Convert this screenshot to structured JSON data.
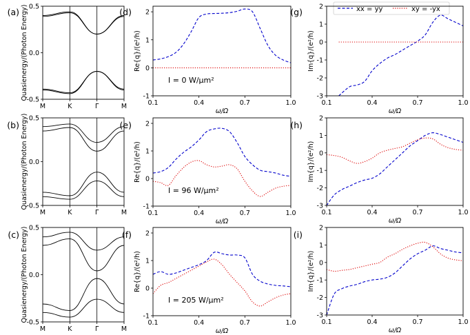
{
  "figure": {
    "legend": [
      {
        "label": "xx = yy",
        "color": "#0000cc",
        "dash": "dashed"
      },
      {
        "label": "xy = -yx",
        "color": "#dd0000",
        "dash": "dotted"
      }
    ]
  },
  "chart_data": [
    {
      "panel": "(a)",
      "type": "line",
      "ylabel": "Quasienergy/(Photon Energy)",
      "ylim": [
        -0.5,
        0.5
      ],
      "yticks": [
        "0.5",
        "0.0",
        "-0.5"
      ],
      "xticks": [
        "M",
        "K",
        "Γ",
        "M"
      ],
      "xpath": [
        0,
        1,
        2,
        3
      ],
      "series": [
        {
          "name": "band1",
          "values": [
            0.4,
            0.44,
            0.2,
            0.4
          ]
        },
        {
          "name": "band2",
          "values": [
            0.39,
            0.43,
            0.2,
            0.39
          ]
        },
        {
          "name": "band3",
          "values": [
            -0.39,
            -0.43,
            -0.2,
            -0.39
          ]
        },
        {
          "name": "band4",
          "values": [
            -0.4,
            -0.44,
            -0.2,
            -0.4
          ]
        }
      ]
    },
    {
      "panel": "(b)",
      "type": "line",
      "ylabel": "Quasienergy/(Photon Energy)",
      "ylim": [
        -0.5,
        0.5
      ],
      "yticks": [
        "0.5",
        "0.0",
        "-0.5"
      ],
      "xticks": [
        "M",
        "K",
        "Γ",
        "M"
      ],
      "xpath": [
        0,
        1,
        2,
        3
      ],
      "series": [
        {
          "name": "band1",
          "values": [
            0.4,
            0.43,
            0.22,
            0.4
          ]
        },
        {
          "name": "band2",
          "values": [
            0.35,
            0.39,
            0.12,
            0.35
          ]
        },
        {
          "name": "band3",
          "values": [
            -0.35,
            -0.39,
            -0.12,
            -0.35
          ]
        },
        {
          "name": "band4",
          "values": [
            -0.4,
            -0.43,
            -0.22,
            -0.4
          ]
        }
      ]
    },
    {
      "panel": "(c)",
      "type": "line",
      "ylabel": "Quasienergy/(Photon Energy)",
      "ylim": [
        -0.5,
        0.5
      ],
      "yticks": [
        "0.5",
        "0.0",
        "-0.5"
      ],
      "xticks": [
        "M",
        "K",
        "Γ",
        "M"
      ],
      "xpath": [
        0,
        1,
        2,
        3
      ],
      "series": [
        {
          "name": "band1",
          "values": [
            0.4,
            0.45,
            0.26,
            0.4
          ]
        },
        {
          "name": "band2",
          "values": [
            0.31,
            0.38,
            0.04,
            0.31
          ]
        },
        {
          "name": "band3",
          "values": [
            -0.31,
            -0.38,
            -0.04,
            -0.31
          ]
        },
        {
          "name": "band4",
          "values": [
            -0.4,
            -0.45,
            -0.26,
            -0.4
          ]
        }
      ]
    },
    {
      "panel": "(d)",
      "type": "line",
      "xlabel": "ω/Ω",
      "ylabel": "Re{q}/(e²/h)",
      "xlim": [
        0.1,
        1.0
      ],
      "ylim": [
        -1,
        2.2
      ],
      "xticks": [
        "0.1",
        "0.4",
        "0.7",
        "1.0"
      ],
      "yticks": [
        "-1",
        "0",
        "1",
        "2"
      ],
      "annotation": "I = 0 W/μm²",
      "x": [
        0.1,
        0.15,
        0.2,
        0.25,
        0.3,
        0.35,
        0.4,
        0.45,
        0.5,
        0.55,
        0.6,
        0.65,
        0.7,
        0.75,
        0.8,
        0.85,
        0.9,
        0.95,
        1.0
      ],
      "series": [
        {
          "name": "xx = yy",
          "values": [
            0.28,
            0.32,
            0.4,
            0.55,
            0.85,
            1.3,
            1.8,
            1.92,
            1.94,
            1.95,
            1.97,
            2.02,
            2.1,
            2.0,
            1.4,
            0.8,
            0.45,
            0.28,
            0.18
          ]
        },
        {
          "name": "xy = -yx",
          "values": [
            0,
            0,
            0,
            0,
            0,
            0,
            0,
            0,
            0,
            0,
            0,
            0,
            0,
            0,
            0,
            0,
            0,
            0,
            0
          ]
        }
      ]
    },
    {
      "panel": "(e)",
      "type": "line",
      "xlabel": "ω/Ω",
      "ylabel": "Re{q}/(e²/h)",
      "xlim": [
        0.1,
        1.0
      ],
      "ylim": [
        -1,
        2.2
      ],
      "xticks": [
        "0.1",
        "0.4",
        "0.7",
        "1.0"
      ],
      "yticks": [
        "-1",
        "0",
        "1",
        "2"
      ],
      "annotation": "I = 96 W/μm²",
      "x": [
        0.1,
        0.15,
        0.2,
        0.25,
        0.3,
        0.35,
        0.4,
        0.45,
        0.5,
        0.55,
        0.6,
        0.65,
        0.7,
        0.75,
        0.8,
        0.85,
        0.9,
        0.95,
        1.0
      ],
      "series": [
        {
          "name": "xx = yy",
          "values": [
            0.2,
            0.25,
            0.4,
            0.7,
            0.95,
            1.15,
            1.4,
            1.7,
            1.8,
            1.82,
            1.7,
            1.3,
            0.8,
            0.5,
            0.3,
            0.25,
            0.2,
            0.12,
            0.08
          ]
        },
        {
          "name": "xy = -yx",
          "values": [
            -0.1,
            -0.15,
            -0.25,
            0.1,
            0.4,
            0.6,
            0.65,
            0.5,
            0.42,
            0.45,
            0.5,
            0.35,
            -0.1,
            -0.45,
            -0.65,
            -0.5,
            -0.35,
            -0.28,
            -0.25
          ]
        }
      ]
    },
    {
      "panel": "(f)",
      "type": "line",
      "xlabel": "ω/Ω",
      "ylabel": "Re{q}/(e²/h)",
      "xlim": [
        0.1,
        1.0
      ],
      "ylim": [
        -1,
        2.2
      ],
      "xticks": [
        "0.1",
        "0.4",
        "0.7",
        "1.0"
      ],
      "yticks": [
        "-1",
        "0",
        "1",
        "2"
      ],
      "annotation": "I = 205 W/μm²",
      "x": [
        0.1,
        0.15,
        0.2,
        0.25,
        0.3,
        0.35,
        0.4,
        0.45,
        0.5,
        0.55,
        0.6,
        0.65,
        0.7,
        0.75,
        0.8,
        0.85,
        0.9,
        0.95,
        1.0
      ],
      "series": [
        {
          "name": "xx = yy",
          "values": [
            0.5,
            0.6,
            0.5,
            0.55,
            0.65,
            0.75,
            0.85,
            1.0,
            1.3,
            1.25,
            1.2,
            1.2,
            1.1,
            0.5,
            0.25,
            0.15,
            0.1,
            0.08,
            0.05
          ]
        },
        {
          "name": "xy = -yx",
          "values": [
            -0.2,
            0.1,
            0.2,
            0.35,
            0.5,
            0.65,
            0.8,
            0.95,
            1.05,
            0.85,
            0.5,
            0.2,
            -0.1,
            -0.5,
            -0.65,
            -0.5,
            -0.35,
            -0.25,
            -0.2
          ]
        }
      ]
    },
    {
      "panel": "(g)",
      "type": "line",
      "xlabel": "ω/Ω",
      "ylabel": "Im{q}/(e²/h)",
      "xlim": [
        0.1,
        1.0
      ],
      "ylim": [
        -3,
        2
      ],
      "xticks": [
        "0.1",
        "0.4",
        "0.7",
        "1.0"
      ],
      "yticks": [
        "-3",
        "-2",
        "-1",
        "0",
        "1",
        "2"
      ],
      "x": [
        0.18,
        0.25,
        0.3,
        0.35,
        0.4,
        0.45,
        0.5,
        0.55,
        0.6,
        0.65,
        0.7,
        0.75,
        0.8,
        0.85,
        0.9,
        0.95,
        1.0
      ],
      "series": [
        {
          "name": "xx = yy",
          "values": [
            -3.0,
            -2.5,
            -2.4,
            -2.2,
            -1.6,
            -1.2,
            -0.9,
            -0.7,
            -0.45,
            -0.2,
            0.05,
            0.4,
            1.1,
            1.5,
            1.3,
            1.1,
            0.9
          ]
        },
        {
          "name": "xy = -yx",
          "values": [
            0,
            0,
            0,
            0,
            0,
            0,
            0,
            0,
            0,
            0,
            0,
            0,
            0,
            0,
            0,
            0,
            0
          ]
        }
      ]
    },
    {
      "panel": "(h)",
      "type": "line",
      "xlabel": "ω/Ω",
      "ylabel": "Im{q}/(e²/h)",
      "xlim": [
        0.1,
        1.0
      ],
      "ylim": [
        -3,
        2
      ],
      "xticks": [
        "0.1",
        "0.4",
        "0.7",
        "1.0"
      ],
      "yticks": [
        "-3",
        "-2",
        "-1",
        "0",
        "1",
        "2"
      ],
      "x": [
        0.1,
        0.15,
        0.2,
        0.25,
        0.3,
        0.35,
        0.4,
        0.45,
        0.5,
        0.55,
        0.6,
        0.65,
        0.7,
        0.75,
        0.8,
        0.85,
        0.9,
        0.95,
        1.0
      ],
      "series": [
        {
          "name": "xx = yy",
          "values": [
            -3.0,
            -2.4,
            -2.1,
            -1.9,
            -1.7,
            -1.55,
            -1.45,
            -1.2,
            -0.8,
            -0.4,
            0.0,
            0.4,
            0.7,
            1.0,
            1.15,
            1.05,
            0.9,
            0.75,
            0.6
          ]
        },
        {
          "name": "xy = -yx",
          "values": [
            -0.1,
            -0.15,
            -0.25,
            -0.45,
            -0.6,
            -0.5,
            -0.3,
            0.0,
            0.15,
            0.25,
            0.35,
            0.55,
            0.75,
            0.85,
            0.8,
            0.5,
            0.3,
            0.2,
            0.15
          ]
        }
      ]
    },
    {
      "panel": "(i)",
      "type": "line",
      "xlabel": "ω/Ω",
      "ylabel": "Im{q}/(e²/h)",
      "xlim": [
        0.1,
        1.0
      ],
      "ylim": [
        -3,
        2
      ],
      "xticks": [
        "0.1",
        "0.4",
        "0.7",
        "1.0"
      ],
      "yticks": [
        "-3",
        "-2",
        "-1",
        "0",
        "1",
        "2"
      ],
      "x": [
        0.1,
        0.15,
        0.2,
        0.25,
        0.3,
        0.35,
        0.4,
        0.45,
        0.5,
        0.55,
        0.6,
        0.65,
        0.7,
        0.75,
        0.8,
        0.85,
        0.9,
        0.95,
        1.0
      ],
      "series": [
        {
          "name": "xx = yy",
          "values": [
            -3.0,
            -1.8,
            -1.5,
            -1.35,
            -1.25,
            -1.1,
            -1.0,
            -0.95,
            -0.85,
            -0.6,
            -0.2,
            0.2,
            0.5,
            0.7,
            0.95,
            0.8,
            0.7,
            0.6,
            0.55
          ]
        },
        {
          "name": "xy = -yx",
          "values": [
            -0.4,
            -0.5,
            -0.45,
            -0.4,
            -0.3,
            -0.2,
            -0.1,
            0.0,
            0.3,
            0.5,
            0.75,
            0.95,
            1.1,
            1.15,
            0.9,
            0.5,
            0.25,
            0.15,
            0.1
          ]
        }
      ]
    }
  ]
}
